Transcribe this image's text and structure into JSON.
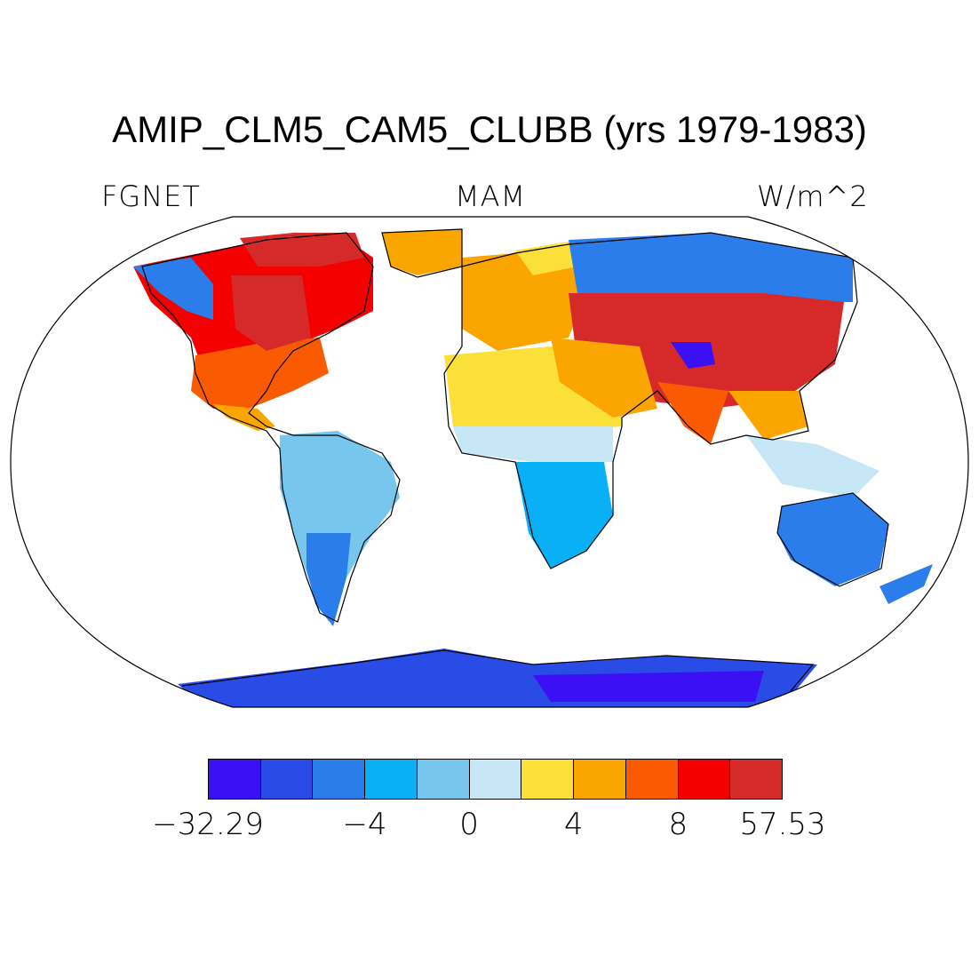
{
  "title": "AMIP_CLM5_CAM5_CLUBB (yrs 1979-1983)",
  "left_label": "FGNET",
  "center_label": "MAM",
  "right_label": "W/m^2",
  "projection": "Robinson",
  "colorbar": {
    "colors": [
      "#3b10f5",
      "#2a4ce6",
      "#2b7deb",
      "#0ab0f5",
      "#76c6ee",
      "#c8e7f6",
      "#fbe03a",
      "#fba500",
      "#fb5b00",
      "#f50000",
      "#d62a2a"
    ],
    "tick_labels": [
      "−32.29",
      "−4",
      "0",
      "4",
      "8",
      "57.53"
    ],
    "tick_boundary_index": [
      0,
      3,
      5,
      7,
      9,
      11
    ]
  },
  "map_regions": [
    {
      "region": "Canada / northern North America",
      "category": "warm",
      "color": "#f50000"
    },
    {
      "region": "Eastern United States",
      "category": "warm",
      "color": "#f50000"
    },
    {
      "region": "Greenland",
      "category": "mild warm",
      "color": "#fba500"
    },
    {
      "region": "Alaska",
      "category": "mixed",
      "color": "#2b7deb"
    },
    {
      "region": "Central Asia / China",
      "category": "warm",
      "color": "#d62a2a"
    },
    {
      "region": "Tibetan Plateau",
      "category": "cold",
      "color": "#3b10f5"
    },
    {
      "region": "Siberia",
      "category": "cool",
      "color": "#2b7deb"
    },
    {
      "region": "Europe",
      "category": "mild warm",
      "color": "#fba500"
    },
    {
      "region": "Sahara / North Africa",
      "category": "slight warm",
      "color": "#fbe03a"
    },
    {
      "region": "Sahel",
      "category": "near zero",
      "color": "#c8e7f6"
    },
    {
      "region": "Southern Africa",
      "category": "cool",
      "color": "#0ab0f5"
    },
    {
      "region": "South America",
      "category": "slight cool",
      "color": "#76c6ee"
    },
    {
      "region": "Patagonia",
      "category": "cool",
      "color": "#2b7deb"
    },
    {
      "region": "Australia",
      "category": "cool",
      "color": "#2b7deb"
    },
    {
      "region": "Southeast Asia",
      "category": "near zero",
      "color": "#c8e7f6"
    },
    {
      "region": "Antarctica",
      "category": "cold",
      "color": "#2a4ce6"
    }
  ]
}
